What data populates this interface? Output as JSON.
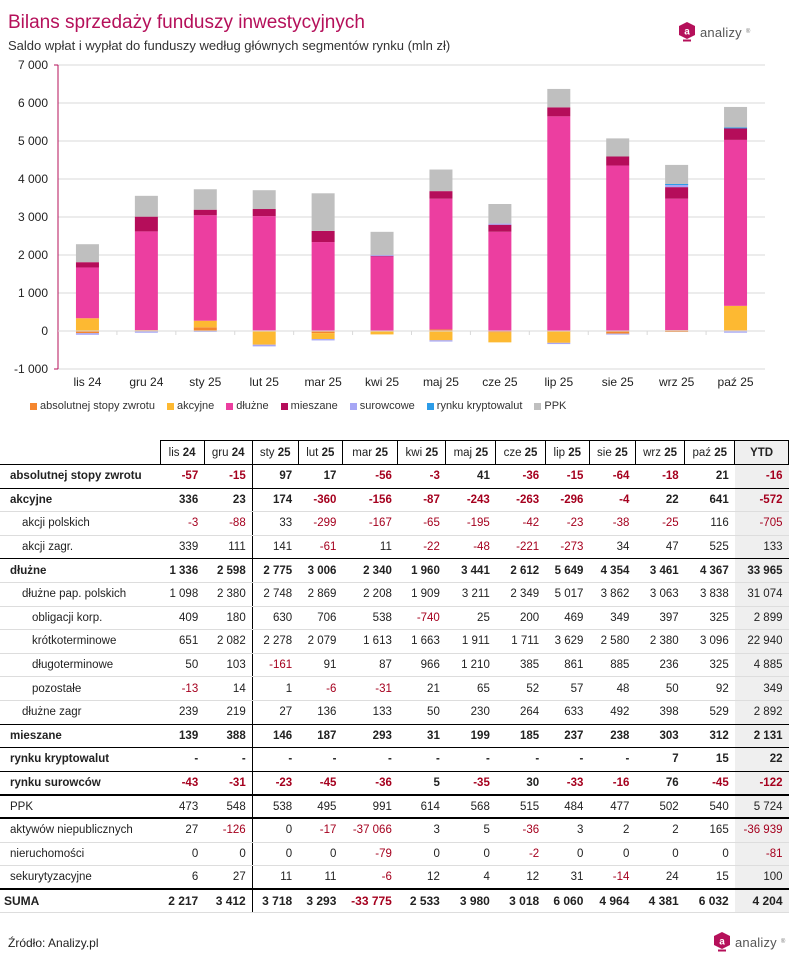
{
  "header": {
    "title": "Bilans sprzedaży funduszy inwestycyjnych",
    "subtitle": "Saldo wpłat i wypłat do funduszy według głównych segmentów rynku (mln zł)",
    "logo_text": "analizy",
    "logo_mark": "a",
    "logo_reg": "®"
  },
  "colors": {
    "title": "#b5105a",
    "negative": "#a5001e",
    "absolutnej_stopy_zwrotu": "#f5862e",
    "akcyjne": "#fdb932",
    "dluzne": "#ec3ea0",
    "mieszane": "#b50d5a",
    "surowcowe": "#a6a6f5",
    "rynku_kryptowalut": "#2c9ce8",
    "PPK": "#bfbfbf"
  },
  "chart_data": {
    "type": "bar",
    "stacked": true,
    "title": "Bilans sprzedaży funduszy inwestycyjnych",
    "subtitle": "Saldo wpłat i wypłat do funduszy według głównych segmentów rynku (mln zł)",
    "xlabel": "",
    "ylabel": "",
    "ylim": [
      -1000,
      7000
    ],
    "yticks": [
      -1000,
      0,
      1000,
      2000,
      3000,
      4000,
      5000,
      6000,
      7000
    ],
    "ytick_labels": [
      "-1 000",
      "0",
      "1 000",
      "2 000",
      "3 000",
      "4 000",
      "5 000",
      "6 000",
      "7 000"
    ],
    "grid": true,
    "legend_position": "bottom",
    "categories": [
      "lis 24",
      "gru 24",
      "sty 25",
      "lut 25",
      "mar 25",
      "kwi 25",
      "maj 25",
      "cze 25",
      "lip 25",
      "sie 25",
      "wrz 25",
      "paź 25"
    ],
    "series": [
      {
        "name": "absolutnej stopy zwrotu",
        "color_key": "absolutnej_stopy_zwrotu",
        "values": [
          -57,
          -15,
          97,
          17,
          -56,
          -3,
          41,
          -36,
          -15,
          -64,
          -18,
          21
        ]
      },
      {
        "name": "akcyjne",
        "color_key": "akcyjne",
        "values": [
          336,
          23,
          174,
          -360,
          -156,
          -87,
          -243,
          -263,
          -296,
          -4,
          22,
          641
        ]
      },
      {
        "name": "dłużne",
        "color_key": "dluzne",
        "values": [
          1336,
          2598,
          2775,
          3006,
          2340,
          1960,
          3441,
          2612,
          5649,
          4354,
          3461,
          4367
        ]
      },
      {
        "name": "mieszane",
        "color_key": "mieszane",
        "values": [
          139,
          388,
          146,
          187,
          293,
          31,
          199,
          185,
          237,
          238,
          303,
          312
        ]
      },
      {
        "name": "surowcowe",
        "color_key": "surowcowe",
        "values": [
          -43,
          -31,
          -23,
          -45,
          -36,
          5,
          -35,
          30,
          -33,
          -16,
          76,
          -45
        ]
      },
      {
        "name": "rynku kryptowalut",
        "color_key": "rynku_kryptowalut",
        "values": [
          0,
          0,
          0,
          0,
          0,
          0,
          0,
          0,
          0,
          0,
          7,
          15
        ]
      },
      {
        "name": "PPK",
        "color_key": "PPK",
        "values": [
          473,
          548,
          538,
          495,
          991,
          614,
          568,
          515,
          484,
          477,
          502,
          540
        ]
      }
    ]
  },
  "table": {
    "columns": [
      "lis 24",
      "gru 24",
      "sty 25",
      "lut 25",
      "mar 25",
      "kwi 25",
      "maj 25",
      "cze 25",
      "lip 25",
      "sie 25",
      "wrz 25",
      "paź 25",
      "YTD"
    ],
    "rows": [
      {
        "label": "absolutnej stopy zwrotu",
        "level": 0,
        "bold": true,
        "border": "thin-dark",
        "values": [
          "-57",
          "-15",
          "97",
          "17",
          "-56",
          "-3",
          "41",
          "-36",
          "-15",
          "-64",
          "-18",
          "21",
          "-16"
        ]
      },
      {
        "label": "akcyjne",
        "level": 0,
        "bold": true,
        "border": "",
        "values": [
          "336",
          "23",
          "174",
          "-360",
          "-156",
          "-87",
          "-243",
          "-263",
          "-296",
          "-4",
          "22",
          "641",
          "-572"
        ]
      },
      {
        "label": "akcji polskich",
        "level": 1,
        "bold": false,
        "border": "",
        "values": [
          "-3",
          "-88",
          "33",
          "-299",
          "-167",
          "-65",
          "-195",
          "-42",
          "-23",
          "-38",
          "-25",
          "116",
          "-705"
        ]
      },
      {
        "label": "akcji zagr.",
        "level": 1,
        "bold": false,
        "border": "thin-dark",
        "values": [
          "339",
          "111",
          "141",
          "-61",
          "11",
          "-22",
          "-48",
          "-221",
          "-273",
          "34",
          "47",
          "525",
          "133"
        ]
      },
      {
        "label": "dłużne",
        "level": 0,
        "bold": true,
        "border": "",
        "values": [
          "1 336",
          "2 598",
          "2 775",
          "3 006",
          "2 340",
          "1 960",
          "3 441",
          "2 612",
          "5 649",
          "4 354",
          "3 461",
          "4 367",
          "33 965"
        ]
      },
      {
        "label": "dłużne pap. polskich",
        "level": 1,
        "bold": false,
        "border": "",
        "values": [
          "1 098",
          "2 380",
          "2 748",
          "2 869",
          "2 208",
          "1 909",
          "3 211",
          "2 349",
          "5 017",
          "3 862",
          "3 063",
          "3 838",
          "31 074"
        ]
      },
      {
        "label": "obligacji korp.",
        "level": 2,
        "bold": false,
        "border": "",
        "values": [
          "409",
          "180",
          "630",
          "706",
          "538",
          "-740",
          "25",
          "200",
          "469",
          "349",
          "397",
          "325",
          "2 899"
        ]
      },
      {
        "label": "krótkoterminowe",
        "level": 2,
        "bold": false,
        "border": "",
        "values": [
          "651",
          "2 082",
          "2 278",
          "2 079",
          "1 613",
          "1 663",
          "1 911",
          "1 711",
          "3 629",
          "2 580",
          "2 380",
          "3 096",
          "22 940"
        ]
      },
      {
        "label": "długoterminowe",
        "level": 2,
        "bold": false,
        "border": "",
        "values": [
          "50",
          "103",
          "-161",
          "91",
          "87",
          "966",
          "1 210",
          "385",
          "861",
          "885",
          "236",
          "325",
          "4 885"
        ]
      },
      {
        "label": "pozostałe",
        "level": 2,
        "bold": false,
        "border": "",
        "values": [
          "-13",
          "14",
          "1",
          "-6",
          "-31",
          "21",
          "65",
          "52",
          "57",
          "48",
          "50",
          "92",
          "349"
        ]
      },
      {
        "label": "dłużne zagr",
        "level": 1,
        "bold": false,
        "border": "thin-dark",
        "values": [
          "239",
          "219",
          "27",
          "136",
          "133",
          "50",
          "230",
          "264",
          "633",
          "492",
          "398",
          "529",
          "2 892"
        ]
      },
      {
        "label": "mieszane",
        "level": 0,
        "bold": true,
        "border": "thin-dark",
        "values": [
          "139",
          "388",
          "146",
          "187",
          "293",
          "31",
          "199",
          "185",
          "237",
          "238",
          "303",
          "312",
          "2 131"
        ]
      },
      {
        "label": "rynku kryptowalut",
        "level": 0,
        "bold": true,
        "border": "thin-dark",
        "values": [
          "-",
          "-",
          "-",
          "-",
          "-",
          "-",
          "-",
          "-",
          "-",
          "-",
          "7",
          "15",
          "22"
        ]
      },
      {
        "label": "rynku surowców",
        "level": 0,
        "bold": true,
        "border": "thick",
        "values": [
          "-43",
          "-31",
          "-23",
          "-45",
          "-36",
          "5",
          "-35",
          "30",
          "-33",
          "-16",
          "76",
          "-45",
          "-122"
        ]
      },
      {
        "label": "PPK",
        "level": 0,
        "bold": false,
        "border": "thick",
        "values": [
          "473",
          "548",
          "538",
          "495",
          "991",
          "614",
          "568",
          "515",
          "484",
          "477",
          "502",
          "540",
          "5 724"
        ]
      },
      {
        "label": "aktywów niepublicznych",
        "level": 0,
        "bold": false,
        "border": "",
        "values": [
          "27",
          "-126",
          "0",
          "-17",
          "-37 066",
          "3",
          "5",
          "-36",
          "3",
          "2",
          "2",
          "165",
          "-36 939"
        ]
      },
      {
        "label": "nieruchomości",
        "level": 0,
        "bold": false,
        "border": "",
        "values": [
          "0",
          "0",
          "0",
          "0",
          "-79",
          "0",
          "0",
          "-2",
          "0",
          "0",
          "0",
          "0",
          "-81"
        ]
      },
      {
        "label": "sekurytyzacyjne",
        "level": 0,
        "bold": false,
        "border": "thick",
        "values": [
          "6",
          "27",
          "11",
          "11",
          "-6",
          "12",
          "4",
          "12",
          "31",
          "-14",
          "24",
          "15",
          "100"
        ]
      },
      {
        "label": "SUMA",
        "level": -1,
        "bold": true,
        "border": "none",
        "values": [
          "2 217",
          "3 412",
          "3 718",
          "3 293",
          "-33 775",
          "2 533",
          "3 980",
          "3 018",
          "6 060",
          "4 964",
          "4 381",
          "6 032",
          "4 204"
        ]
      }
    ]
  },
  "footer": {
    "source": "Źródło: Analizy.pl"
  }
}
